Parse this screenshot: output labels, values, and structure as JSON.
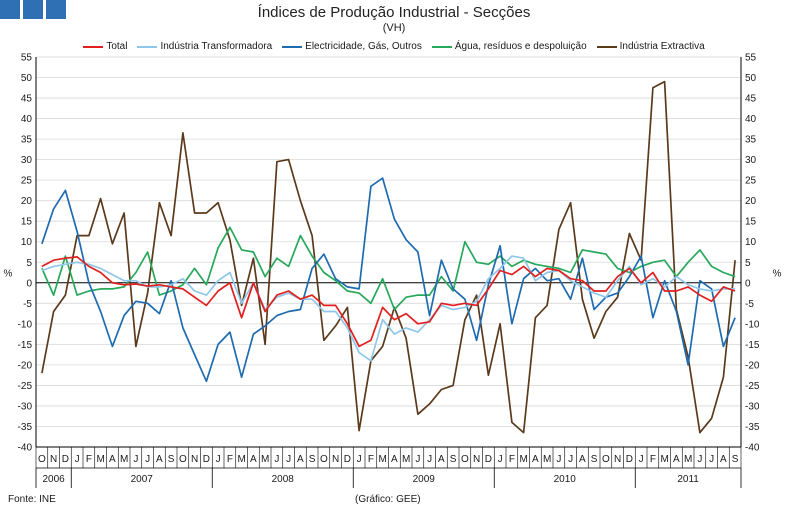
{
  "header": {
    "title": "Índices de Produção Industrial - Secções",
    "subtitle": "(VH)"
  },
  "footer": {
    "source": "Fonte: INE",
    "credit": "(Gráfico: GEE)"
  },
  "colors": {
    "logo": "#2f6fb3",
    "grid": "#d9d9d9",
    "zero_line": "#000000"
  },
  "chart_data": {
    "type": "line",
    "title": "Índices de Produção Industrial - Secções",
    "subtitle": "(VH)",
    "ylabel_left": "%",
    "ylabel_right": "%",
    "ylim": [
      -40,
      55
    ],
    "yticks": [
      -40,
      -35,
      -30,
      -25,
      -20,
      -15,
      -10,
      -5,
      0,
      5,
      10,
      15,
      20,
      25,
      30,
      35,
      40,
      45,
      50,
      55
    ],
    "grid": "horizontal",
    "legend_position": "top",
    "x": [
      "O",
      "N",
      "D",
      "J",
      "F",
      "M",
      "A",
      "M",
      "J",
      "J",
      "A",
      "S",
      "O",
      "N",
      "D",
      "J",
      "F",
      "M",
      "A",
      "M",
      "J",
      "J",
      "A",
      "S",
      "O",
      "N",
      "D",
      "J",
      "F",
      "M",
      "A",
      "M",
      "J",
      "J",
      "A",
      "S",
      "O",
      "N",
      "D",
      "J",
      "F",
      "M",
      "A",
      "M",
      "J",
      "J",
      "A",
      "S",
      "O",
      "N",
      "D",
      "J",
      "F",
      "M",
      "A",
      "M",
      "J",
      "J",
      "A",
      "S"
    ],
    "year_groups": [
      {
        "label": "2006",
        "months": 3
      },
      {
        "label": "2007",
        "months": 12
      },
      {
        "label": "2008",
        "months": 12
      },
      {
        "label": "2009",
        "months": 12
      },
      {
        "label": "2010",
        "months": 12
      },
      {
        "label": "2011",
        "months": 9
      }
    ],
    "series": [
      {
        "name": "Total",
        "color": "#e0201e",
        "values": [
          4.0,
          5.5,
          6.0,
          6.3,
          4.0,
          2.5,
          0.0,
          -0.5,
          -0.3,
          -0.8,
          -0.5,
          -1.0,
          -1.5,
          -3.5,
          -5.5,
          -2.0,
          0.0,
          -8.5,
          0.0,
          -7.0,
          -3.0,
          -2.0,
          -4.0,
          -3.0,
          -5.5,
          -5.5,
          -10.0,
          -15.5,
          -14.0,
          -6.0,
          -9.0,
          -7.5,
          -10.0,
          -9.5,
          -5.0,
          -5.5,
          -5.0,
          -5.5,
          -1.5,
          3.0,
          2.0,
          4.0,
          1.5,
          3.5,
          3.0,
          1.0,
          0.5,
          -2.0,
          -2.0,
          1.5,
          3.5,
          0.0,
          2.5,
          -2.0,
          -2.0,
          -1.0,
          -3.0,
          -4.5,
          -1.0,
          -2.0
        ]
      },
      {
        "name": "Indústria Transformadora",
        "color": "#8fc7ea",
        "values": [
          3.0,
          4.0,
          4.5,
          5.0,
          4.5,
          3.5,
          2.0,
          0.5,
          0.5,
          -1.0,
          -1.0,
          -0.5,
          1.0,
          -2.0,
          -3.0,
          0.5,
          2.5,
          -5.0,
          0.0,
          -6.5,
          -3.5,
          -2.5,
          -4.0,
          -4.0,
          -7.0,
          -7.0,
          -11.0,
          -17.0,
          -19.0,
          -9.0,
          -12.5,
          -11.0,
          -12.0,
          -9.0,
          -5.5,
          -6.5,
          -6.0,
          -4.5,
          1.0,
          3.5,
          6.5,
          6.0,
          0.5,
          2.5,
          3.0,
          0.5,
          -1.0,
          -2.5,
          -3.5,
          0.5,
          4.0,
          -0.5,
          1.0,
          -1.0,
          1.5,
          -0.5,
          -1.5,
          -2.0,
          -1.5,
          -1.5
        ]
      },
      {
        "name": "Electricidade, Gás, Outros",
        "color": "#1f6bb0",
        "values": [
          9.5,
          18.0,
          22.5,
          12.5,
          0.0,
          -7.0,
          -15.5,
          -8.0,
          -4.5,
          -5.0,
          -7.5,
          0.5,
          -11.0,
          -17.5,
          -24.0,
          -15.0,
          -12.0,
          -23.0,
          -12.5,
          -10.5,
          -8.0,
          -7.0,
          -6.5,
          3.5,
          7.0,
          1.0,
          -1.0,
          -1.5,
          23.5,
          25.5,
          15.5,
          10.5,
          7.5,
          -8.0,
          5.5,
          -1.5,
          -4.0,
          -14.0,
          -0.5,
          9.0,
          -10.0,
          1.0,
          3.5,
          0.5,
          1.0,
          -4.0,
          6.0,
          -6.5,
          -3.5,
          -2.5,
          1.5,
          6.5,
          -8.5,
          0.5,
          -7.0,
          -20.0,
          0.5,
          -1.5,
          -15.5,
          -8.5
        ]
      },
      {
        "name": "Água, resíduos e despoluição",
        "color": "#27a85a",
        "values": [
          3.5,
          -3.0,
          6.5,
          -3.0,
          -2.0,
          -1.5,
          -1.5,
          -1.0,
          2.5,
          7.5,
          -3.0,
          -2.0,
          -0.5,
          3.5,
          -0.5,
          8.5,
          13.5,
          8.0,
          7.5,
          1.5,
          6.0,
          4.0,
          11.5,
          6.5,
          2.5,
          0.5,
          -2.0,
          -2.5,
          -5.0,
          1.0,
          -6.5,
          -3.5,
          -3.0,
          -3.0,
          1.5,
          -2.0,
          10.0,
          5.0,
          4.5,
          6.5,
          4.0,
          5.5,
          4.5,
          4.0,
          3.5,
          2.5,
          8.0,
          7.5,
          7.0,
          3.5,
          2.5,
          4.0,
          5.0,
          5.5,
          1.5,
          5.0,
          8.0,
          4.0,
          2.5,
          1.5
        ]
      },
      {
        "name": "Indústria Extractiva",
        "color": "#5b3a1c",
        "values": [
          -22.0,
          -7.0,
          -3.0,
          11.5,
          11.5,
          20.5,
          9.5,
          17.0,
          -15.5,
          -2.5,
          19.5,
          11.5,
          36.5,
          17.0,
          17.0,
          19.5,
          10.5,
          -5.5,
          6.0,
          -15.0,
          29.5,
          30.0,
          20.0,
          11.5,
          -14.0,
          -10.5,
          -6.0,
          -36.0,
          -19.0,
          -15.5,
          -6.0,
          -13.5,
          -32.0,
          -29.5,
          -26.0,
          -25.0,
          -9.0,
          -3.0,
          -22.5,
          -10.0,
          -34.0,
          -36.5,
          -8.5,
          -5.5,
          13.0,
          19.5,
          -4.0,
          -13.5,
          -7.0,
          -3.5,
          12.0,
          5.5,
          47.5,
          49.0,
          -6.5,
          -18.0,
          -36.5,
          -33.0,
          -23.0,
          5.5
        ]
      }
    ]
  }
}
